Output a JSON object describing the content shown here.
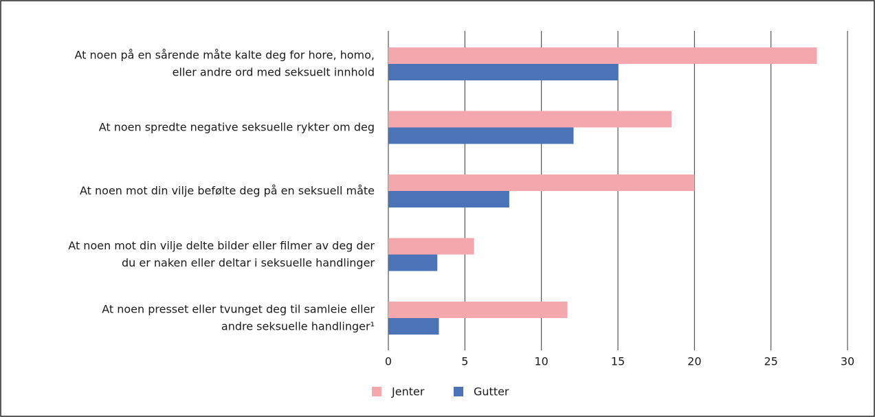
{
  "chart_data": {
    "type": "barh",
    "categories": [
      "At noen på en sårende måte kalte deg for hore, homo,\neller andre ord med seksuelt innhold",
      "At noen spredte negative seksuelle rykter om deg",
      "At noen mot din vilje befølte deg på en seksuell måte",
      "At noen mot din vilje delte bilder eller filmer av deg der\ndu er naken eller deltar i seksuelle handlinger",
      "At noen presset eller tvunget deg til samleie eller\nandre seksuelle handlinger¹"
    ],
    "series": [
      {
        "name": "Jenter",
        "color": "#f4a7ad",
        "values": [
          28,
          18.5,
          20,
          5.6,
          11.7
        ]
      },
      {
        "name": "Gutter",
        "color": "#4a73b8",
        "values": [
          15,
          12.1,
          7.9,
          3.2,
          3.3
        ]
      }
    ],
    "xlim": [
      0,
      30
    ],
    "xticks": [
      0,
      5,
      10,
      15,
      20,
      25,
      30
    ],
    "grid": true,
    "legend": "bottom"
  }
}
